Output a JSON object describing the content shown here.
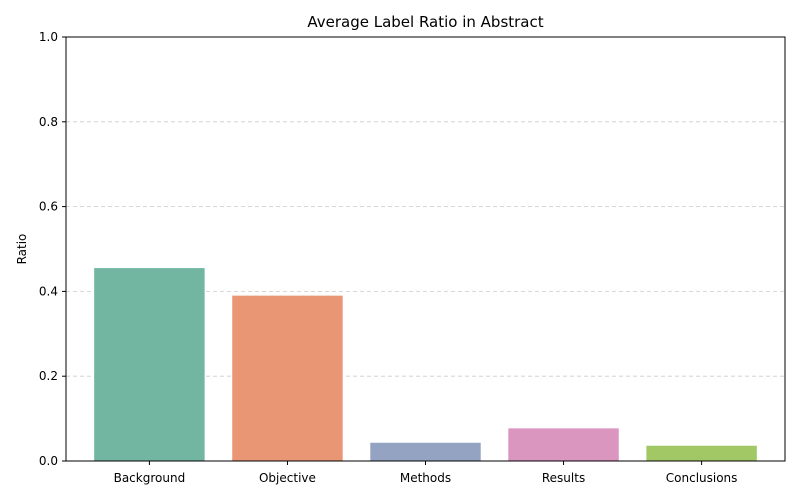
{
  "chart_data": {
    "type": "bar",
    "title": "Average Label Ratio in Abstract",
    "xlabel": "",
    "ylabel": "Ratio",
    "categories": [
      "Background",
      "Objective",
      "Methods",
      "Results",
      "Conclusions"
    ],
    "values": [
      0.455,
      0.39,
      0.043,
      0.077,
      0.036
    ],
    "colors": [
      "#72b6a1",
      "#e99675",
      "#95a3c3",
      "#db96c0",
      "#a2c865"
    ],
    "ylim": [
      0,
      1.0
    ],
    "yticks": [
      "0.0",
      "0.2",
      "0.4",
      "0.6",
      "0.8",
      "1.0"
    ],
    "grid": "y-dashed",
    "legend": "none"
  }
}
